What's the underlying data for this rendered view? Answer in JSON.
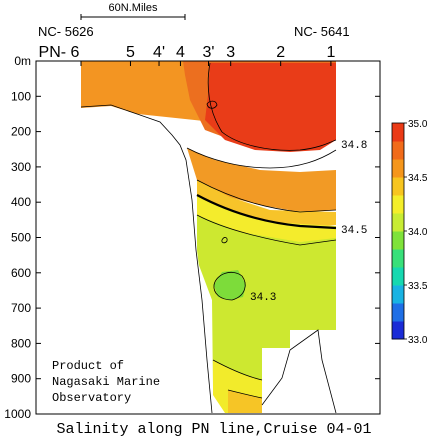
{
  "chart_data": {
    "type": "heatmap",
    "title": "Salinity along PN line,Cruise 04-01",
    "ylabel": "",
    "y_unit_label": "0m",
    "ylim": [
      0,
      1000
    ],
    "y_ticks": [
      {
        "v": 0,
        "label": "0m"
      },
      {
        "v": 100,
        "label": "100"
      },
      {
        "v": 200,
        "label": "200"
      },
      {
        "v": 300,
        "label": "300"
      },
      {
        "v": 400,
        "label": "400"
      },
      {
        "v": 500,
        "label": "500"
      },
      {
        "v": 600,
        "label": "600"
      },
      {
        "v": 700,
        "label": "700"
      },
      {
        "v": 800,
        "label": "800"
      },
      {
        "v": 900,
        "label": "900"
      },
      {
        "v": 1000,
        "label": "1000"
      }
    ],
    "stations": [
      {
        "label": "PN- 6",
        "pos": 0.0
      },
      {
        "label": "5",
        "pos": 0.194
      },
      {
        "label": "4'",
        "pos": 0.306
      },
      {
        "label": "4",
        "pos": 0.39
      },
      {
        "label": "3'",
        "pos": 0.5
      },
      {
        "label": "3",
        "pos": 0.587
      },
      {
        "label": "2",
        "pos": 0.783
      },
      {
        "label": "1",
        "pos": 0.98
      }
    ],
    "station_ids": {
      "left": "NC- 5626",
      "right": "NC- 5641"
    },
    "scale_bar_label": "60N.Miles",
    "colorbar": {
      "min": 33.0,
      "max": 35.0,
      "tick_labels": [
        "35.0",
        "34.5",
        "34.0",
        "33.5",
        "33.0"
      ],
      "colors": [
        "#1a2bd6",
        "#1f6fe6",
        "#19b3e3",
        "#16d8b0",
        "#38e07a",
        "#7fe23a",
        "#c8ec34",
        "#f4ee2a",
        "#f7c51f",
        "#f5961b",
        "#f16b1a",
        "#ea3a16"
      ]
    },
    "contour_labels": [
      "34.8",
      "34.5",
      "34.3"
    ],
    "note": [
      "Product of",
      "Nagasaki Marine",
      "Observatory"
    ]
  }
}
